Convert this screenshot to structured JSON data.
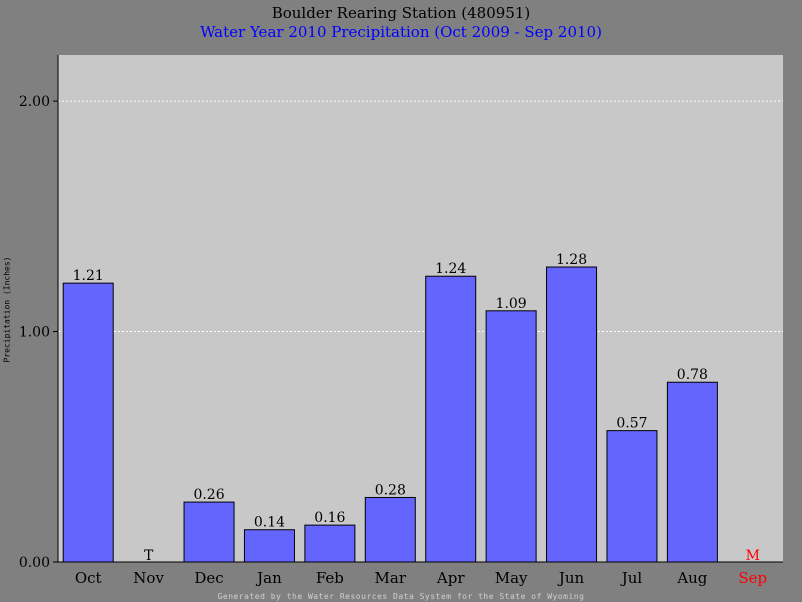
{
  "chart_data": {
    "type": "bar",
    "title": "Boulder Rearing Station (480951)",
    "subtitle": "Water Year 2010 Precipitation (Oct 2009 - Sep 2010)",
    "ylabel": "Precipitation (Inches)",
    "xlabel": "",
    "footer": "Generated by the Water Resources Data System for the State of Wyoming",
    "categories": [
      "Oct",
      "Nov",
      "Dec",
      "Jan",
      "Feb",
      "Mar",
      "Apr",
      "May",
      "Jun",
      "Jul",
      "Aug",
      "Sep"
    ],
    "values": [
      1.21,
      0,
      0.26,
      0.14,
      0.16,
      0.28,
      1.24,
      1.09,
      1.28,
      0.57,
      0.78,
      null
    ],
    "value_labels": [
      "1.21",
      "T",
      "0.26",
      "0.14",
      "0.16",
      "0.28",
      "1.24",
      "1.09",
      "1.28",
      "0.57",
      "0.78",
      "M"
    ],
    "ylim": [
      0,
      2.2
    ],
    "yticks": [
      0,
      1,
      2
    ],
    "ytick_labels": [
      "0.00",
      "1.00",
      "2.00"
    ],
    "grid": true,
    "colors": {
      "background": "#808080",
      "plot_bg": "#c8c8c8",
      "bar": "#6464ff",
      "missing": "#ff0000",
      "grid": "#ffffff",
      "title": "#000000",
      "subtitle": "#0000ff"
    }
  }
}
